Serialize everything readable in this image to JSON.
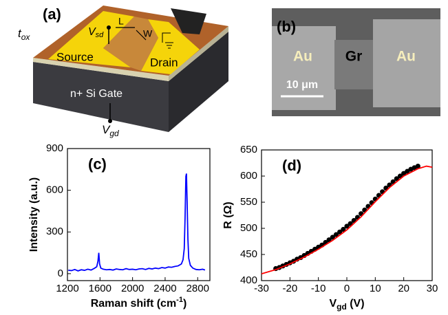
{
  "figure_a": {
    "label": "(a)",
    "tox": {
      "base": "t",
      "sub": "ox"
    },
    "vsd": {
      "base": "V",
      "sub": "sd"
    },
    "vgd": {
      "base": "V",
      "sub": "gd"
    },
    "length": "L",
    "width": "W",
    "source": "Source",
    "drain": "Drain",
    "gate": "n+ Si Gate"
  },
  "figure_b": {
    "label": "(b)",
    "left_pad": "Au",
    "channel": "Gr",
    "right_pad": "Au",
    "scale_bar": "10 μm"
  },
  "chart_data": [
    {
      "type": "line",
      "panel": "(c)",
      "ylabel": "Intensity (a.u.)",
      "xlabel": {
        "text": "Raman shift (cm",
        "sup": "-1",
        "tail": ")"
      },
      "color": "#0000ff",
      "xlim": [
        1200,
        2950
      ],
      "ylim": [
        -50,
        900
      ],
      "xticks": [
        1200,
        1600,
        2000,
        2400,
        2800
      ],
      "yticks": [
        0,
        300,
        600,
        900
      ],
      "x": [
        1210,
        1250,
        1290,
        1330,
        1370,
        1410,
        1450,
        1490,
        1530,
        1560,
        1575,
        1585,
        1595,
        1610,
        1640,
        1680,
        1720,
        1760,
        1800,
        1840,
        1880,
        1920,
        1960,
        2000,
        2040,
        2080,
        2120,
        2160,
        2200,
        2240,
        2280,
        2320,
        2360,
        2400,
        2440,
        2480,
        2520,
        2560,
        2600,
        2620,
        2635,
        2645,
        2655,
        2662,
        2670,
        2680,
        2690,
        2710,
        2740,
        2780,
        2820,
        2860,
        2890
      ],
      "values": [
        25,
        22,
        30,
        20,
        28,
        24,
        32,
        26,
        38,
        50,
        90,
        150,
        70,
        40,
        32,
        28,
        30,
        26,
        34,
        30,
        28,
        36,
        30,
        32,
        28,
        34,
        36,
        30,
        38,
        34,
        40,
        36,
        44,
        40,
        48,
        46,
        52,
        56,
        70,
        100,
        180,
        400,
        700,
        720,
        520,
        250,
        110,
        60,
        40,
        30,
        28,
        32,
        26
      ]
    },
    {
      "type": "scatter",
      "panel": "(d)",
      "ylabel": "R (Ω)",
      "xlabel": {
        "text": "V",
        "sub": "gd",
        "tail": " (V)"
      },
      "xlim": [
        -30,
        30
      ],
      "ylim": [
        400,
        650
      ],
      "xticks": [
        -30,
        -20,
        -10,
        0,
        10,
        20,
        30
      ],
      "yticks": [
        400,
        450,
        500,
        550,
        600,
        650
      ],
      "series": [
        {
          "type": "scatter",
          "color": "#000000",
          "x": [
            -25,
            -23.75,
            -22.5,
            -21.25,
            -20,
            -18.75,
            -17.5,
            -16.25,
            -15,
            -13.75,
            -12.5,
            -11.25,
            -10,
            -8.75,
            -7.5,
            -6.25,
            -5,
            -3.75,
            -2.5,
            -1.25,
            0,
            1.25,
            2.5,
            3.75,
            5,
            6.25,
            7.5,
            8.75,
            10,
            11.25,
            12.5,
            13.75,
            15,
            16.25,
            17.5,
            18.75,
            20,
            21.25,
            22.5,
            23.75,
            25
          ],
          "values": [
            423,
            425,
            428,
            431,
            434,
            437,
            441,
            444,
            448,
            452,
            456,
            460,
            464,
            468,
            473,
            478,
            483,
            488,
            493,
            498,
            504,
            509,
            515,
            521,
            528,
            535,
            542,
            549,
            556,
            563,
            570,
            577,
            583,
            589,
            595,
            600,
            605,
            609,
            613,
            616,
            619
          ]
        },
        {
          "type": "line",
          "color": "#ff0000",
          "x": [
            -30,
            -25,
            -20,
            -15,
            -10,
            -5,
            0,
            5,
            10,
            15,
            20,
            25,
            28,
            30
          ],
          "values": [
            413,
            421,
            432,
            445,
            460,
            477,
            497,
            522,
            551,
            578,
            600,
            614,
            619,
            617
          ]
        }
      ]
    }
  ]
}
